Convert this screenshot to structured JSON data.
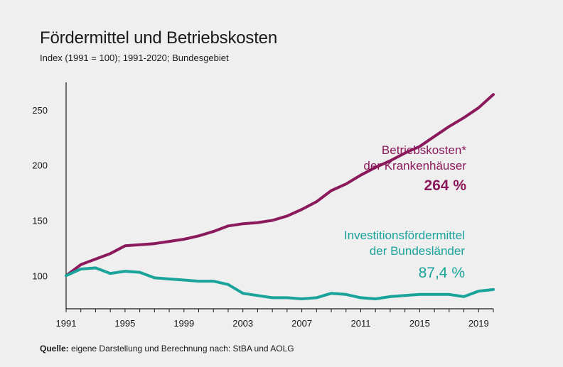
{
  "chart_data": {
    "type": "line",
    "title": "Fördermittel und Betriebskosten",
    "subtitle": "Index (1991 = 100); 1991-2020; Bundesgebiet",
    "xlabel": "",
    "ylabel": "",
    "xlim": [
      1991,
      2020
    ],
    "ylim": [
      70,
      275
    ],
    "yticks": [
      100,
      150,
      200,
      250
    ],
    "xticks": [
      1991,
      1995,
      1999,
      2003,
      2007,
      2011,
      2015,
      2019
    ],
    "x": [
      1991,
      1992,
      1993,
      1994,
      1995,
      1996,
      1997,
      1998,
      1999,
      2000,
      2001,
      2002,
      2003,
      2004,
      2005,
      2006,
      2007,
      2008,
      2009,
      2010,
      2011,
      2012,
      2013,
      2014,
      2015,
      2016,
      2017,
      2018,
      2019,
      2020
    ],
    "series": [
      {
        "name": "Betriebskosten* der Krankenhäuser",
        "color": "#8b1a5c",
        "values": [
          100,
          110,
          115,
          120,
          127,
          128,
          129,
          131,
          133,
          136,
          140,
          145,
          147,
          148,
          150,
          154,
          160,
          167,
          177,
          183,
          191,
          198,
          204,
          211,
          217,
          226,
          235,
          243,
          252,
          264
        ],
        "label_lines": [
          "Betriebskosten*",
          "der Krankenhäuser"
        ],
        "end_label": "264 %"
      },
      {
        "name": "Investitionsfördermittel der Bundesländer",
        "color": "#1aa39a",
        "values": [
          100,
          106,
          107,
          102,
          104,
          103,
          98,
          97,
          96,
          95,
          95,
          92,
          84,
          82,
          80,
          80,
          79,
          80,
          84,
          83,
          80,
          79,
          81,
          82,
          83,
          83,
          83,
          81,
          86,
          87.4
        ],
        "label_lines": [
          "Investitionsfördermittel",
          "der Bundesländer"
        ],
        "end_label": "87,4 %"
      }
    ],
    "grid": false,
    "legend": "none"
  },
  "source": {
    "label": "Quelle:",
    "text": "eigene Darstellung und Berechnung nach: StBA und AOLG"
  }
}
